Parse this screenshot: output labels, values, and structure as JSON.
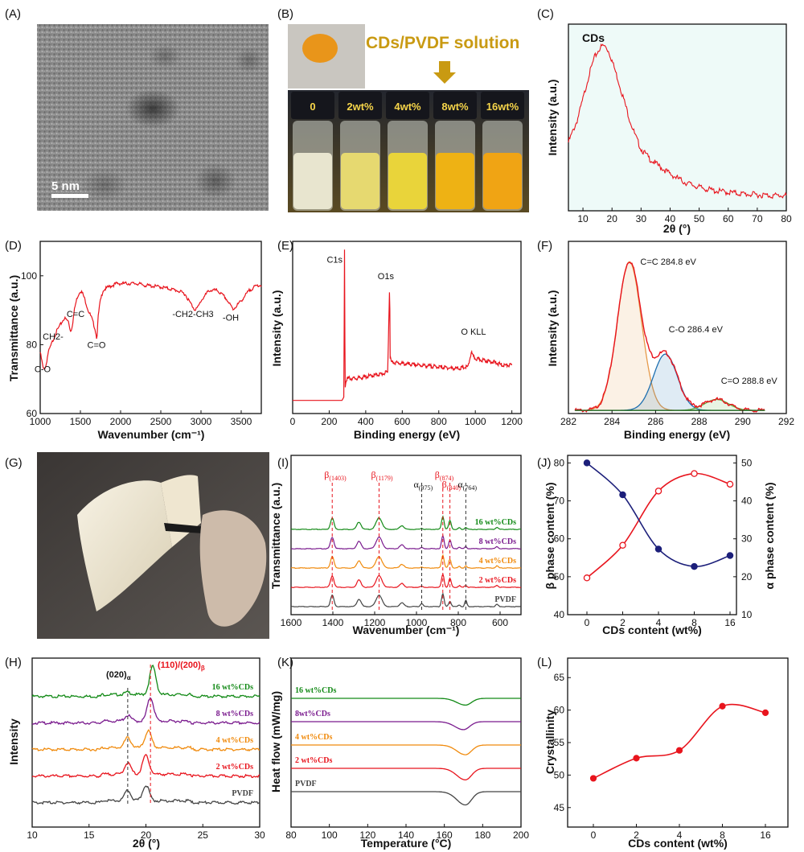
{
  "colors": {
    "red": "#e8141d",
    "green": "#138a17",
    "purple": "#7a1b8e",
    "orange": "#f08a0c",
    "black": "#444444",
    "navy": "#1c1f7a",
    "plot_bg_c": "#eefaf8",
    "fit_c1": "#e69a4a",
    "fit_c2": "#1e6fb0",
    "fit_c3": "#5fae3a",
    "base": "#2d6e2d"
  },
  "panel_labels": [
    "(A)",
    "(B)",
    "(C)",
    "(D)",
    "(E)",
    "(F)",
    "(G)",
    "(H)",
    "(I)",
    "(J)",
    "(K)",
    "(L)"
  ],
  "panel_a": {
    "scale_bar": "5 nm"
  },
  "panel_b": {
    "title": "CDs/PVDF solution",
    "vials": [
      "0",
      "2wt%",
      "4wt%",
      "8wt%",
      "16wt%"
    ]
  },
  "chart_data": [
    {
      "id": "C",
      "type": "line",
      "title": "CDs",
      "xlabel": "2θ (°)",
      "ylabel": "Intensity (a.u.)",
      "xlim": [
        5,
        80
      ],
      "xticks": [
        10,
        20,
        30,
        40,
        50,
        60,
        70,
        80
      ],
      "x": [
        5,
        8,
        10,
        12,
        14,
        16,
        17,
        18,
        19,
        20,
        22,
        24,
        26,
        28,
        30,
        33,
        36,
        40,
        45,
        50,
        55,
        60,
        65,
        70,
        75,
        80
      ],
      "y": [
        0.42,
        0.55,
        0.68,
        0.82,
        0.93,
        0.99,
        1.0,
        0.99,
        0.96,
        0.91,
        0.8,
        0.68,
        0.56,
        0.46,
        0.38,
        0.32,
        0.28,
        0.23,
        0.18,
        0.15,
        0.13,
        0.12,
        0.11,
        0.105,
        0.1,
        0.1
      ]
    },
    {
      "id": "D",
      "type": "line",
      "xlabel": "Wavenumber (cm⁻¹)",
      "ylabel": "Transmittance (a.u.)",
      "xlim": [
        1000,
        3750
      ],
      "ylim": [
        60,
        110
      ],
      "xticks": [
        1000,
        1500,
        2000,
        2500,
        3000,
        3500
      ],
      "yticks": [
        60,
        80,
        100
      ],
      "x": [
        1000,
        1040,
        1070,
        1100,
        1150,
        1200,
        1250,
        1300,
        1350,
        1380,
        1400,
        1430,
        1460,
        1500,
        1530,
        1560,
        1600,
        1640,
        1680,
        1705,
        1720,
        1740,
        1780,
        1850,
        1950,
        2050,
        2150,
        2200,
        2300,
        2500,
        2700,
        2800,
        2850,
        2920,
        2960,
        3000,
        3100,
        3200,
        3300,
        3400,
        3500,
        3600,
        3700,
        3750
      ],
      "y": [
        78,
        73,
        74,
        78,
        81,
        84,
        86,
        88,
        87,
        84,
        86,
        91,
        94,
        96,
        95,
        93,
        90,
        88,
        85,
        82,
        88,
        92,
        96,
        97,
        98,
        98,
        98,
        98,
        97.5,
        97,
        96,
        95,
        93,
        90.5,
        91,
        93,
        96,
        96,
        94,
        90.5,
        93,
        96,
        97.5,
        97.5
      ],
      "annotations": [
        "C-O",
        "CH2-",
        "C=C",
        "C=O",
        "-CH2-CH3",
        "-OH"
      ]
    },
    {
      "id": "E",
      "type": "line",
      "xlabel": "Binding energy (eV)",
      "ylabel": "Intensity (a.u.)",
      "xlim": [
        0,
        1250
      ],
      "xticks": [
        0,
        200,
        400,
        600,
        800,
        1000,
        1200
      ],
      "x": [
        0,
        100,
        200,
        270,
        280,
        284,
        287,
        292,
        300,
        350,
        400,
        450,
        500,
        520,
        531,
        534,
        540,
        600,
        700,
        800,
        900,
        960,
        978,
        990,
        1000,
        1050,
        1100,
        1150,
        1200
      ],
      "y": [
        0.08,
        0.08,
        0.08,
        0.08,
        0.1,
        1.0,
        0.15,
        0.2,
        0.22,
        0.22,
        0.23,
        0.24,
        0.25,
        0.26,
        0.8,
        0.35,
        0.32,
        0.31,
        0.3,
        0.29,
        0.28,
        0.29,
        0.38,
        0.35,
        0.34,
        0.33,
        0.32,
        0.3,
        0.3
      ],
      "annotations": [
        "C1s",
        "O1s",
        "O KLL"
      ]
    },
    {
      "id": "F",
      "type": "line",
      "xlabel": "Binding energy (eV)",
      "ylabel": "Intensity (a.u.)",
      "xlim": [
        282,
        292
      ],
      "xticks": [
        282,
        284,
        286,
        288,
        290,
        292
      ],
      "components": [
        {
          "name": "C=C 284.8 eV",
          "center": 284.8,
          "height": 0.95,
          "width": 0.55
        },
        {
          "name": "C-O 286.4 eV",
          "center": 286.45,
          "height": 0.36,
          "width": 0.55
        },
        {
          "name": "C=O 288.8 eV",
          "center": 288.8,
          "height": 0.07,
          "width": 0.55
        }
      ]
    },
    {
      "id": "H",
      "type": "line",
      "xlabel": "2θ (°)",
      "ylabel": "Intensity",
      "xlim": [
        10,
        30
      ],
      "xticks": [
        10,
        15,
        20,
        25,
        30
      ],
      "peaks_label_alpha": "(020)",
      "peaks_label_alpha_sub": "α",
      "peaks_label_beta": "(110)/(200)",
      "peaks_label_beta_sub": "β",
      "ref_lines": [
        18.4,
        20.4
      ],
      "series": [
        {
          "name": "16 wt%CDs",
          "offset": 4,
          "peaks": [
            [
              18.4,
              0.1
            ],
            [
              20.6,
              1.25
            ]
          ]
        },
        {
          "name": "8 wt%CDs",
          "offset": 3,
          "peaks": [
            [
              18.4,
              0.25
            ],
            [
              20.4,
              1.05
            ]
          ]
        },
        {
          "name": "4 wt%CDs",
          "offset": 2,
          "peaks": [
            [
              18.4,
              0.45
            ],
            [
              20.2,
              0.75
            ]
          ]
        },
        {
          "name": "2 wt%CDs",
          "offset": 1,
          "peaks": [
            [
              18.4,
              0.5
            ],
            [
              20.0,
              0.85
            ]
          ]
        },
        {
          "name": "PVDF",
          "offset": 0,
          "peaks": [
            [
              18.4,
              0.45
            ],
            [
              20.0,
              0.7
            ]
          ]
        }
      ]
    },
    {
      "id": "I",
      "type": "line",
      "xlabel": "Wavenumber (cm⁻¹)",
      "ylabel": "Transmittance (a.u.)",
      "xlim": [
        1600,
        500
      ],
      "xticks": [
        1600,
        1400,
        1200,
        1000,
        800,
        600
      ],
      "ref_lines": [
        1403,
        1179,
        975,
        874,
        840,
        764
      ],
      "peak_labels": [
        {
          "base": "β",
          "sub": "(1403)",
          "x": 1403
        },
        {
          "base": "β",
          "sub": "(1179)",
          "x": 1179
        },
        {
          "base": "α",
          "sub": "(975)",
          "x": 975
        },
        {
          "base": "β",
          "sub": "(874)",
          "x": 874
        },
        {
          "base": "β",
          "sub": "(840)",
          "x": 840
        },
        {
          "base": "α",
          "sub": "(764)",
          "x": 764
        }
      ],
      "series": [
        {
          "name": "16 wt%CDs",
          "offset": 4
        },
        {
          "name": "8 wt%CDs",
          "offset": 3
        },
        {
          "name": "4 wt%CDs",
          "offset": 2
        },
        {
          "name": "2 wt%CDs",
          "offset": 1
        },
        {
          "name": "PVDF",
          "offset": 0
        }
      ]
    },
    {
      "id": "J",
      "type": "line",
      "xlabel": "CDs content (wt%)",
      "ylabel_left": "β phase content (%)",
      "ylabel_right": "α phase content (%)",
      "categories": [
        "0",
        "2",
        "4",
        "8",
        "16"
      ],
      "ylim_left": [
        40,
        82
      ],
      "ylim_right": [
        10,
        52
      ],
      "yticks_left": [
        40,
        50,
        60,
        70,
        80
      ],
      "yticks_right": [
        10,
        20,
        30,
        40,
        50
      ],
      "series": [
        {
          "name": "β phase",
          "axis": "left",
          "values": [
            49.7,
            58.3,
            72.6,
            77.2,
            74.4
          ]
        },
        {
          "name": "α phase",
          "axis": "right",
          "values": [
            50.0,
            41.6,
            27.3,
            22.7,
            25.6
          ]
        }
      ]
    },
    {
      "id": "K",
      "type": "line",
      "xlabel": "Temperature (°C)",
      "ylabel": "Heat flow (mW/mg)",
      "xlim": [
        80,
        200
      ],
      "xticks": [
        80,
        100,
        120,
        140,
        160,
        180,
        200
      ],
      "series": [
        {
          "name": "16 wt%CDs",
          "offset": 4,
          "peak_T": 171,
          "depth": 0.38
        },
        {
          "name": "8wt%CDs",
          "offset": 3,
          "peak_T": 170,
          "depth": 0.45
        },
        {
          "name": "4 wt%CDs",
          "offset": 2,
          "peak_T": 171,
          "depth": 0.55
        },
        {
          "name": "2 wt%CDs",
          "offset": 1,
          "peak_T": 171,
          "depth": 0.65
        },
        {
          "name": "PVDF",
          "offset": 0,
          "peak_T": 171,
          "depth": 0.75
        }
      ]
    },
    {
      "id": "L",
      "type": "line",
      "xlabel": "CDs content (wt%)",
      "ylabel": "Crystallinity",
      "categories": [
        "0",
        "2",
        "4",
        "8",
        "16"
      ],
      "ylim": [
        42,
        68
      ],
      "yticks": [
        45,
        50,
        55,
        60,
        65
      ],
      "values": [
        49.5,
        52.6,
        53.8,
        60.6,
        59.6
      ]
    }
  ]
}
